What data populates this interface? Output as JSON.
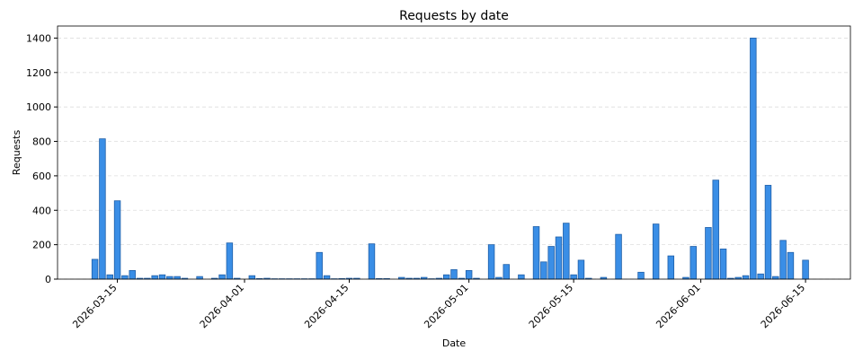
{
  "chart_data": {
    "type": "bar",
    "title": "Requests by date",
    "x_label": "Date",
    "y_label": "Requests",
    "x": [
      "2026-03-12",
      "2026-03-13",
      "2026-03-14",
      "2026-03-15",
      "2026-03-16",
      "2026-03-17",
      "2026-03-18",
      "2026-03-19",
      "2026-03-20",
      "2026-03-21",
      "2026-03-22",
      "2026-03-23",
      "2026-03-24",
      "2026-03-25",
      "2026-03-26",
      "2026-03-27",
      "2026-03-28",
      "2026-03-29",
      "2026-03-30",
      "2026-03-31",
      "2026-04-01",
      "2026-04-02",
      "2026-04-03",
      "2026-04-04",
      "2026-04-05",
      "2026-04-06",
      "2026-04-07",
      "2026-04-08",
      "2026-04-09",
      "2026-04-10",
      "2026-04-11",
      "2026-04-12",
      "2026-04-13",
      "2026-04-14",
      "2026-04-15",
      "2026-04-16",
      "2026-04-17",
      "2026-04-18",
      "2026-04-19",
      "2026-04-20",
      "2026-04-21",
      "2026-04-22",
      "2026-04-23",
      "2026-04-24",
      "2026-04-25",
      "2026-04-26",
      "2026-04-27",
      "2026-04-28",
      "2026-04-29",
      "2026-04-30",
      "2026-05-01",
      "2026-05-02",
      "2026-05-03",
      "2026-05-04",
      "2026-05-05",
      "2026-05-06",
      "2026-05-07",
      "2026-05-08",
      "2026-05-09",
      "2026-05-10",
      "2026-05-11",
      "2026-05-12",
      "2026-05-13",
      "2026-05-14",
      "2026-05-15",
      "2026-05-16",
      "2026-05-17",
      "2026-05-18",
      "2026-05-19",
      "2026-05-20",
      "2026-05-21",
      "2026-05-22",
      "2026-05-23",
      "2026-05-24",
      "2026-05-25",
      "2026-05-26",
      "2026-05-27",
      "2026-05-28",
      "2026-05-29",
      "2026-05-30",
      "2026-05-31",
      "2026-06-01",
      "2026-06-02",
      "2026-06-03",
      "2026-06-04",
      "2026-06-05",
      "2026-06-06",
      "2026-06-07",
      "2026-06-08",
      "2026-06-09",
      "2026-06-10",
      "2026-06-11",
      "2026-06-12",
      "2026-06-13",
      "2026-06-14",
      "2026-06-15"
    ],
    "values": [
      115,
      815,
      25,
      455,
      20,
      50,
      5,
      5,
      20,
      25,
      15,
      15,
      5,
      0,
      15,
      0,
      5,
      25,
      210,
      5,
      0,
      20,
      3,
      5,
      2,
      2,
      2,
      2,
      2,
      2,
      155,
      20,
      2,
      3,
      5,
      5,
      0,
      205,
      3,
      3,
      0,
      10,
      5,
      5,
      10,
      2,
      5,
      25,
      55,
      5,
      50,
      5,
      0,
      200,
      10,
      85,
      0,
      25,
      0,
      305,
      100,
      190,
      245,
      325,
      25,
      110,
      5,
      0,
      10,
      0,
      260,
      0,
      0,
      40,
      0,
      320,
      0,
      135,
      0,
      10,
      190,
      0,
      300,
      575,
      175,
      5,
      10,
      20,
      1400,
      30,
      545,
      15,
      225,
      155,
      0,
      110
    ],
    "color": "#3a8ee6",
    "edge_color": "#1f5fa8",
    "xlim": [
      "2026-03-07",
      "2026-06-21"
    ],
    "xticks": [
      "2026-03-15",
      "2026-04-01",
      "2026-04-15",
      "2026-05-01",
      "2026-05-15",
      "2026-06-01",
      "2026-06-15"
    ],
    "ylim": [
      0,
      1470
    ],
    "yticks": [
      0,
      200,
      400,
      600,
      800,
      1000,
      1200,
      1400
    ],
    "grid": true
  }
}
